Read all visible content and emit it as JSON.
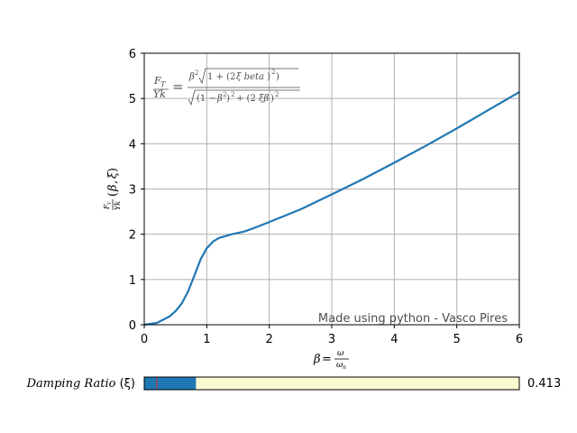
{
  "chart_data": {
    "type": "line",
    "title": "",
    "xlabel": "β = ω/ω_n",
    "ylabel": "F_T/Yk (β, ξ)",
    "xlim": [
      0,
      6
    ],
    "ylim": [
      0,
      6
    ],
    "xticks": [
      "0",
      "1",
      "2",
      "3",
      "4",
      "5",
      "6"
    ],
    "yticks": [
      "0",
      "1",
      "2",
      "3",
      "4",
      "5",
      "6"
    ],
    "grid": true,
    "annotation": "Made using python - Vasco Pires",
    "formula_label": "F_T/Yk = β²√(1+(2ξ beta)²) / √((1−β²)²+(2ξβ)²)",
    "series": [
      {
        "color": "#1f77b4",
        "x": [
          0.0,
          0.2,
          0.4,
          0.5,
          0.6,
          0.7,
          0.8,
          0.9,
          1.0,
          1.1,
          1.2,
          1.4,
          1.6,
          1.8,
          2.0,
          2.5,
          3.0,
          3.5,
          4.0,
          4.5,
          5.0,
          5.5,
          6.0
        ],
        "y": [
          0.0,
          0.04,
          0.18,
          0.3,
          0.47,
          0.73,
          1.08,
          1.44,
          1.69,
          1.84,
          1.92,
          2.0,
          2.06,
          2.16,
          2.27,
          2.55,
          2.88,
          3.22,
          3.58,
          3.95,
          4.34,
          4.74,
          5.14
        ]
      }
    ]
  },
  "slider": {
    "label_name": "Damping Ratio",
    "label_symbol": "(ξ)",
    "value_text": "0.413",
    "value": 0.413,
    "min": 0,
    "max": 3,
    "initial": 0.1,
    "fill_color": "#1f77b4",
    "track_color": "#fafad2",
    "init_marker_color": "#d62728"
  }
}
